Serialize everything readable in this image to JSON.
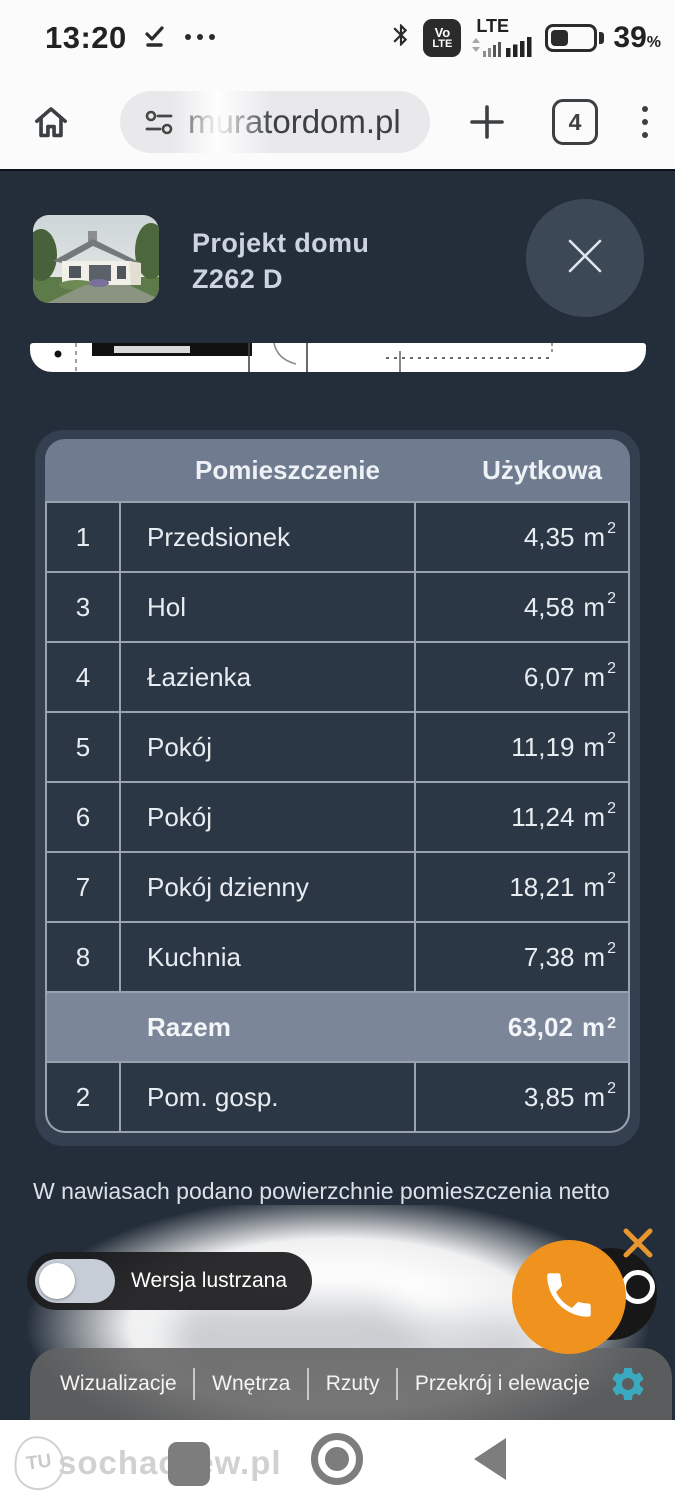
{
  "status_bar": {
    "time": "13:20",
    "volte_top": "Vo",
    "volte_bottom": "LTE",
    "network_label": "LTE",
    "battery_percent": "39",
    "percent_sign": "%"
  },
  "browser": {
    "url": "muratordom.pl",
    "tab_count": "4"
  },
  "project": {
    "title_line1": "Projekt domu",
    "title_line2": "Z262 D"
  },
  "table": {
    "col_room": "Pomieszczenie",
    "col_area": "Użytkowa",
    "unit": "m",
    "unit_exp": "2",
    "rows": [
      {
        "no": "1",
        "name": "Przedsionek",
        "value": "4,35"
      },
      {
        "no": "3",
        "name": "Hol",
        "value": "4,58"
      },
      {
        "no": "4",
        "name": "Łazienka",
        "value": "6,07"
      },
      {
        "no": "5",
        "name": "Pokój",
        "value": "11,19"
      },
      {
        "no": "6",
        "name": "Pokój",
        "value": "11,24"
      },
      {
        "no": "7",
        "name": "Pokój dzienny",
        "value": "18,21"
      },
      {
        "no": "8",
        "name": "Kuchnia",
        "value": "7,38"
      }
    ],
    "total_label": "Razem",
    "total_value": "63,02",
    "below_total_row": {
      "no": "2",
      "name": "Pom. gosp.",
      "value": "3,85"
    }
  },
  "note": "W nawiasach podano powierzchnie pomieszczenia netto",
  "mirror_toggle": {
    "label": "Wersja lustrzana",
    "state": "off"
  },
  "tabbar": {
    "items": [
      "Wizualizacje",
      "Wnętrza",
      "Rzuty",
      "Przekrój i elewacje"
    ]
  },
  "watermark": {
    "logo_text": "TU",
    "site": "sochaczew.pl"
  },
  "colors": {
    "accent_orange": "#F0921E",
    "gear_teal": "#3BA9BF",
    "page_bg": "#242E3A",
    "table_header": "#6F7B8E",
    "total_row_bg": "#7B8799",
    "row_bg": "#2C3745"
  }
}
